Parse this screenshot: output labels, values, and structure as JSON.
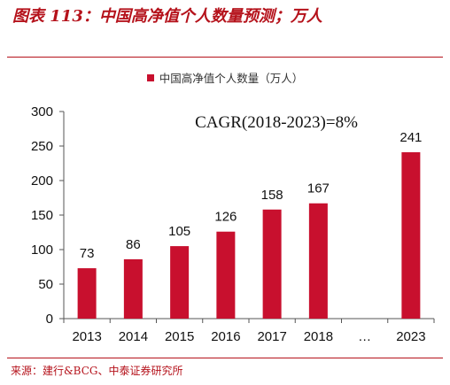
{
  "figure_title": "图表 113：中国高净值个人数量预测；万人",
  "source_note": "来源：建行&BCG、中泰证券研究所",
  "colors": {
    "accent": "#b5121b",
    "bar": "#c8102e"
  },
  "chart_data": {
    "type": "bar",
    "categories": [
      "2013",
      "2014",
      "2015",
      "2016",
      "2017",
      "2018",
      "…",
      "2023"
    ],
    "series": [
      {
        "name": "中国高净值个人数量（万人）",
        "values": [
          73,
          86,
          105,
          126,
          158,
          167,
          null,
          241
        ]
      }
    ],
    "data_labels": [
      "73",
      "86",
      "105",
      "126",
      "158",
      "167",
      "",
      "241"
    ],
    "annotation": "CAGR(2018-2023)=8%",
    "ylim": [
      0,
      300
    ],
    "yticks": [
      0,
      50,
      100,
      150,
      200,
      250,
      300
    ],
    "grid": false,
    "legend_position": "top-center"
  }
}
